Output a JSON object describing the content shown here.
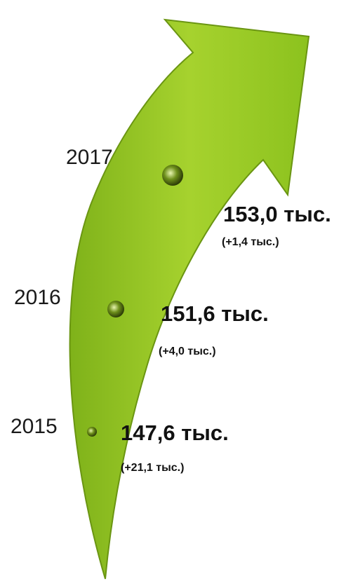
{
  "items": [
    {
      "year": "2017",
      "value": "153,0 тыс.",
      "change": "(+1,4 тыс.)"
    },
    {
      "year": "2016",
      "value": "151,6 тыс.",
      "change": "(+4,0 тыс.)"
    },
    {
      "year": "2015",
      "value": "147,6 тыс.",
      "change": "(+21,1 тыс.)"
    }
  ]
}
